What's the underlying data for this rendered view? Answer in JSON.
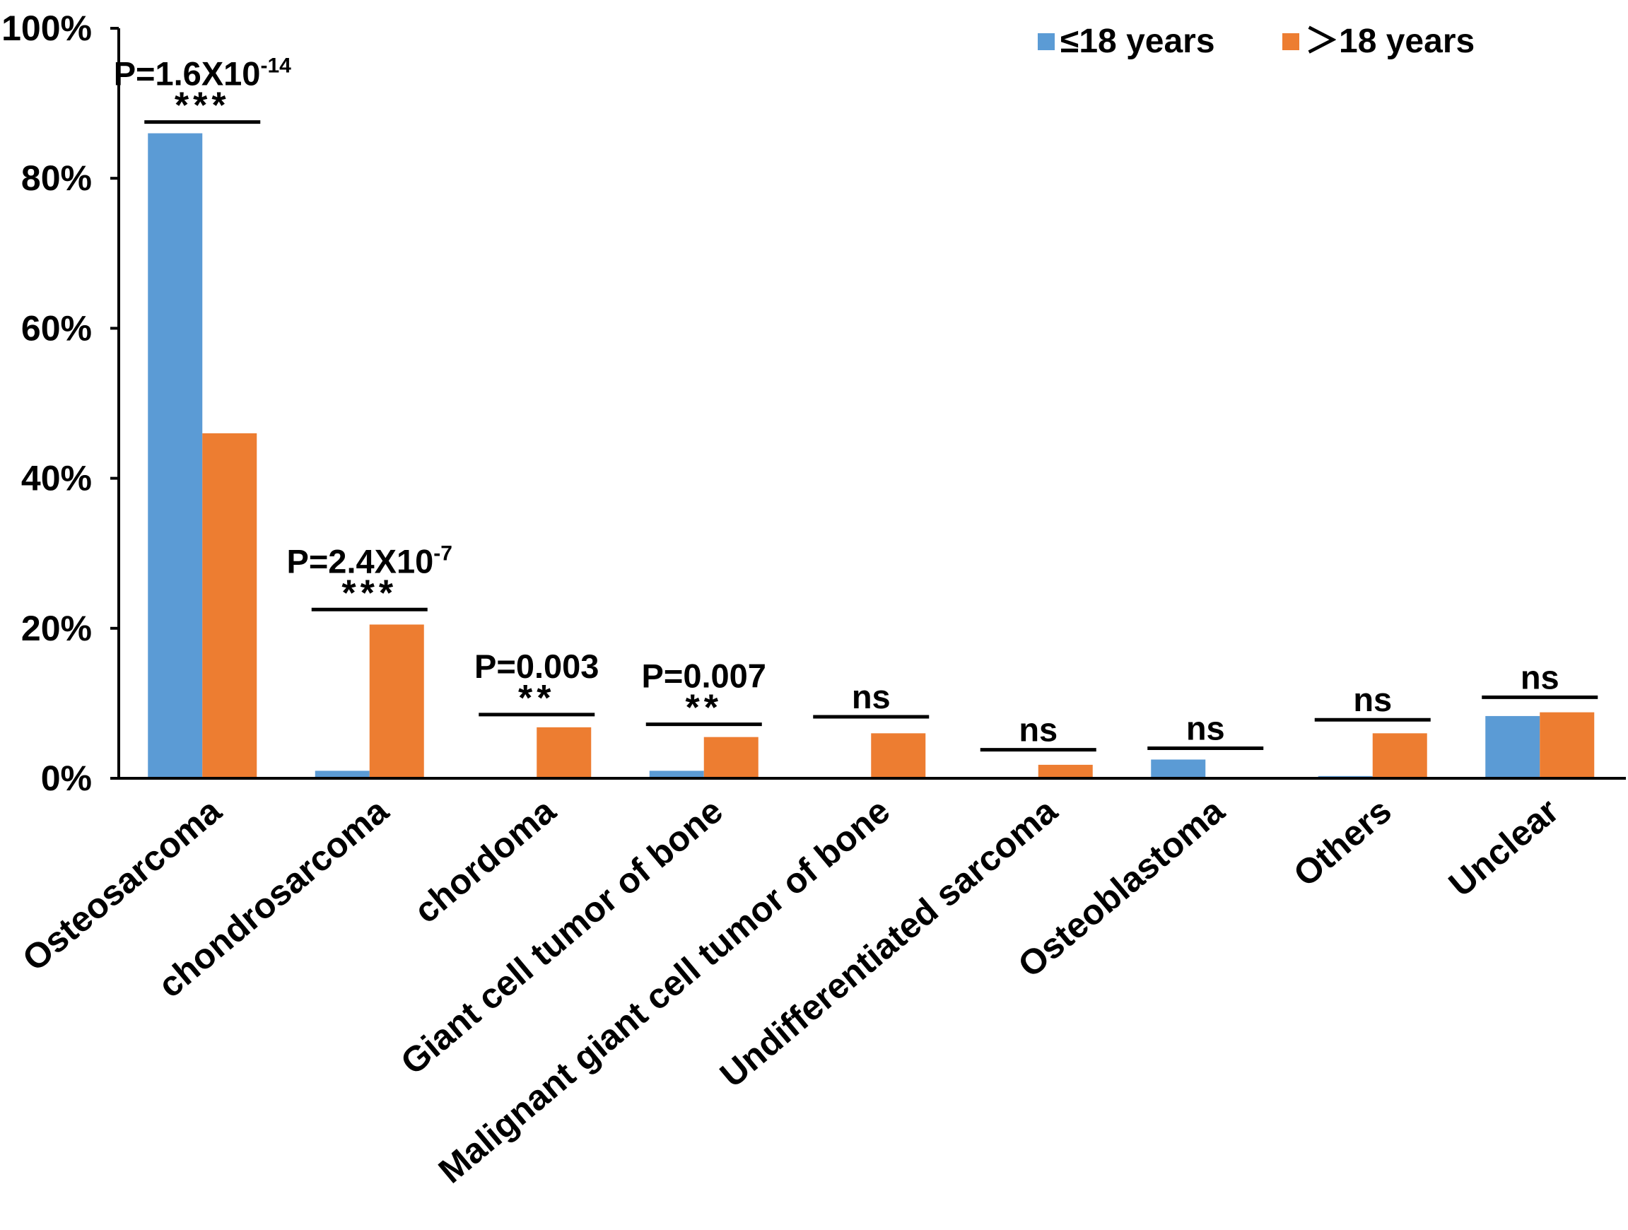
{
  "chart_data": {
    "type": "bar",
    "title": "",
    "xlabel": "",
    "ylabel": "",
    "ylim": [
      0,
      100
    ],
    "yticks": [
      "0%",
      "20%",
      "40%",
      "60%",
      "80%",
      "100%"
    ],
    "categories": [
      "Osteosarcoma",
      "chondrosarcoma",
      "chordoma",
      "Giant cell tumor of bone",
      "Malignant giant cell tumor of bone",
      "Undifferentiated sarcoma",
      "Osteoblastoma",
      "Others",
      "Unclear"
    ],
    "series": [
      {
        "name": "≤18 years",
        "color": "#5b9bd5",
        "values": [
          86,
          1,
          0,
          1,
          0,
          0,
          2.5,
          0.3,
          8.3
        ]
      },
      {
        "name": "＞18 years",
        "color": "#ed7d31",
        "values": [
          46,
          20.5,
          6.8,
          5.5,
          6,
          1.8,
          0,
          6,
          8.8
        ]
      }
    ],
    "legend": "top-right",
    "annotations": [
      {
        "p": "P=1.6X10",
        "exp": "-14",
        "stars": "***",
        "bracket_level": 87.5
      },
      {
        "p": "P=2.4X10",
        "exp": "-7",
        "stars": "***",
        "bracket_level": 22.5
      },
      {
        "p": "P=0.003",
        "exp": "",
        "stars": "**",
        "bracket_level": 8.5
      },
      {
        "p": "P=0.007",
        "exp": "",
        "stars": "**",
        "bracket_level": 7.2
      },
      {
        "p": "ns",
        "exp": "",
        "stars": "",
        "bracket_level": 8.2
      },
      {
        "p": "ns",
        "exp": "",
        "stars": "",
        "bracket_level": 3.8
      },
      {
        "p": "ns",
        "exp": "",
        "stars": "",
        "bracket_level": 4.0
      },
      {
        "p": "ns",
        "exp": "",
        "stars": "",
        "bracket_level": 7.8
      },
      {
        "p": "ns",
        "exp": "",
        "stars": "",
        "bracket_level": 10.8
      }
    ]
  }
}
